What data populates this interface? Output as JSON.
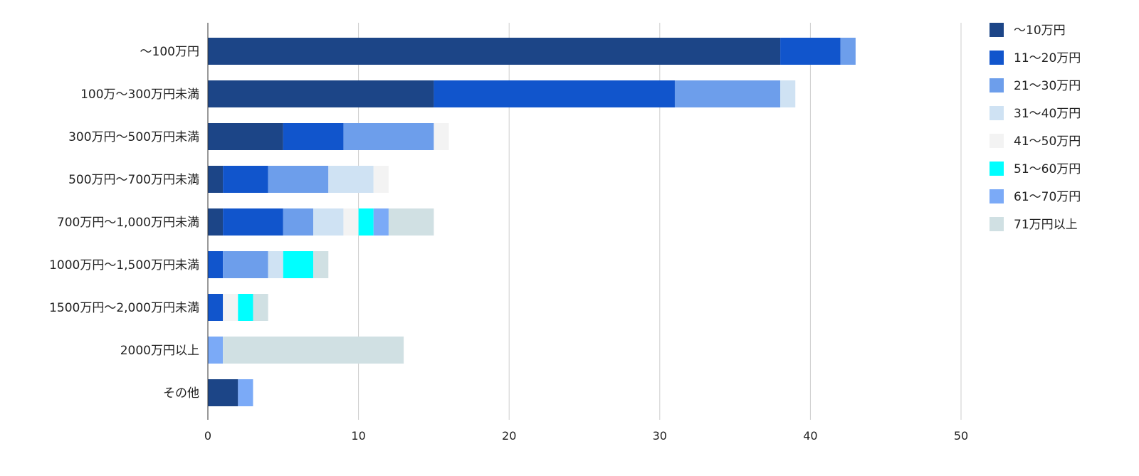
{
  "chart_data": {
    "type": "bar",
    "orientation": "horizontal",
    "stacked": true,
    "title": "",
    "xlabel": "",
    "ylabel": "",
    "xlim": [
      0,
      50
    ],
    "x_ticks": [
      0,
      10,
      20,
      30,
      40,
      50
    ],
    "grid": true,
    "legend_position": "right",
    "categories": [
      "〜100万円",
      "100万〜300万円未満",
      "300万円〜500万円未満",
      "500万円〜700万円未満",
      "700万円〜1,000万円未満",
      "1000万円〜1,500万円未満",
      "1500万円〜2,000万円未満",
      "2000万円以上",
      "その他"
    ],
    "series": [
      {
        "name": "〜10万円",
        "color": "#1c4587",
        "values": [
          38,
          15,
          5,
          1,
          1,
          0,
          0,
          0,
          2
        ]
      },
      {
        "name": "11〜20万円",
        "color": "#1155cc",
        "values": [
          4,
          16,
          4,
          3,
          4,
          1,
          1,
          0,
          0
        ]
      },
      {
        "name": "21〜30万円",
        "color": "#6d9eeb",
        "values": [
          1,
          7,
          6,
          4,
          2,
          3,
          0,
          0,
          0
        ]
      },
      {
        "name": "31〜40万円",
        "color": "#cfe2f3",
        "values": [
          0,
          1,
          0,
          3,
          2,
          1,
          0,
          0,
          0
        ]
      },
      {
        "name": "41〜50万円",
        "color": "#f3f3f3",
        "values": [
          0,
          0,
          1,
          1,
          1,
          0,
          1,
          0,
          0
        ]
      },
      {
        "name": "51〜60万円",
        "color": "#00ffff",
        "values": [
          0,
          0,
          0,
          0,
          1,
          2,
          1,
          0,
          0
        ]
      },
      {
        "name": "61〜70万円",
        "color": "#7baaf7",
        "values": [
          0,
          0,
          0,
          0,
          1,
          0,
          0,
          1,
          1
        ]
      },
      {
        "name": "71万円以上",
        "color": "#d0e0e3",
        "values": [
          0,
          0,
          0,
          0,
          3,
          1,
          1,
          12,
          0
        ]
      }
    ]
  }
}
